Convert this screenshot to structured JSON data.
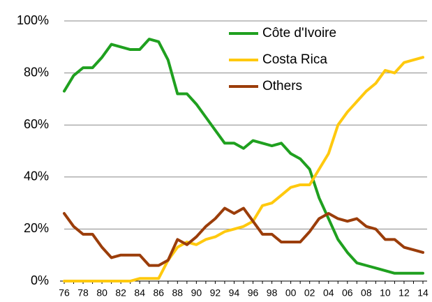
{
  "chart_data": {
    "type": "line",
    "categories": [
      "76",
      null,
      "78",
      null,
      "80",
      null,
      "82",
      null,
      "84",
      null,
      "86",
      null,
      "88",
      null,
      "90",
      null,
      "92",
      null,
      "94",
      null,
      "96",
      null,
      "98",
      null,
      "00",
      null,
      "02",
      null,
      "04",
      null,
      "06",
      null,
      "08",
      null,
      "10",
      null,
      "12",
      null,
      "14"
    ],
    "series": [
      {
        "name": "Côte d'Ivoire",
        "color": "#1fa01f",
        "values": [
          73,
          79,
          82,
          82,
          86,
          91,
          90,
          89,
          89,
          93,
          92,
          85,
          72,
          72,
          68,
          63,
          58,
          53,
          53,
          51,
          54,
          53,
          52,
          53,
          49,
          47,
          43,
          32,
          24,
          16,
          11,
          7,
          6,
          5,
          4,
          3,
          3,
          3,
          3
        ]
      },
      {
        "name": "Costa Rica",
        "color": "#ffc90e",
        "values": [
          0,
          0,
          0,
          0,
          0,
          0,
          0,
          0,
          1,
          1,
          1,
          8,
          13,
          15,
          14,
          16,
          17,
          19,
          20,
          21,
          23,
          29,
          30,
          33,
          36,
          37,
          37,
          43,
          49,
          60,
          65,
          69,
          73,
          76,
          81,
          80,
          84,
          85,
          86
        ]
      },
      {
        "name": "Others",
        "color": "#9b3d0a",
        "values": [
          26,
          21,
          18,
          18,
          13,
          9,
          10,
          10,
          10,
          6,
          6,
          8,
          16,
          14,
          17,
          21,
          24,
          28,
          26,
          28,
          23,
          18,
          18,
          15,
          15,
          15,
          19,
          24,
          26,
          24,
          23,
          24,
          21,
          20,
          16,
          16,
          13,
          12,
          11
        ]
      }
    ],
    "ylim": [
      0,
      100
    ],
    "yticks": [
      {
        "value": 0,
        "label": "0%"
      },
      {
        "value": 20,
        "label": "20%"
      },
      {
        "value": 40,
        "label": "40%"
      },
      {
        "value": 60,
        "label": "60%"
      },
      {
        "value": 80,
        "label": "80%"
      },
      {
        "value": 100,
        "label": "100%"
      }
    ],
    "grid": true,
    "legend": "top-right"
  }
}
